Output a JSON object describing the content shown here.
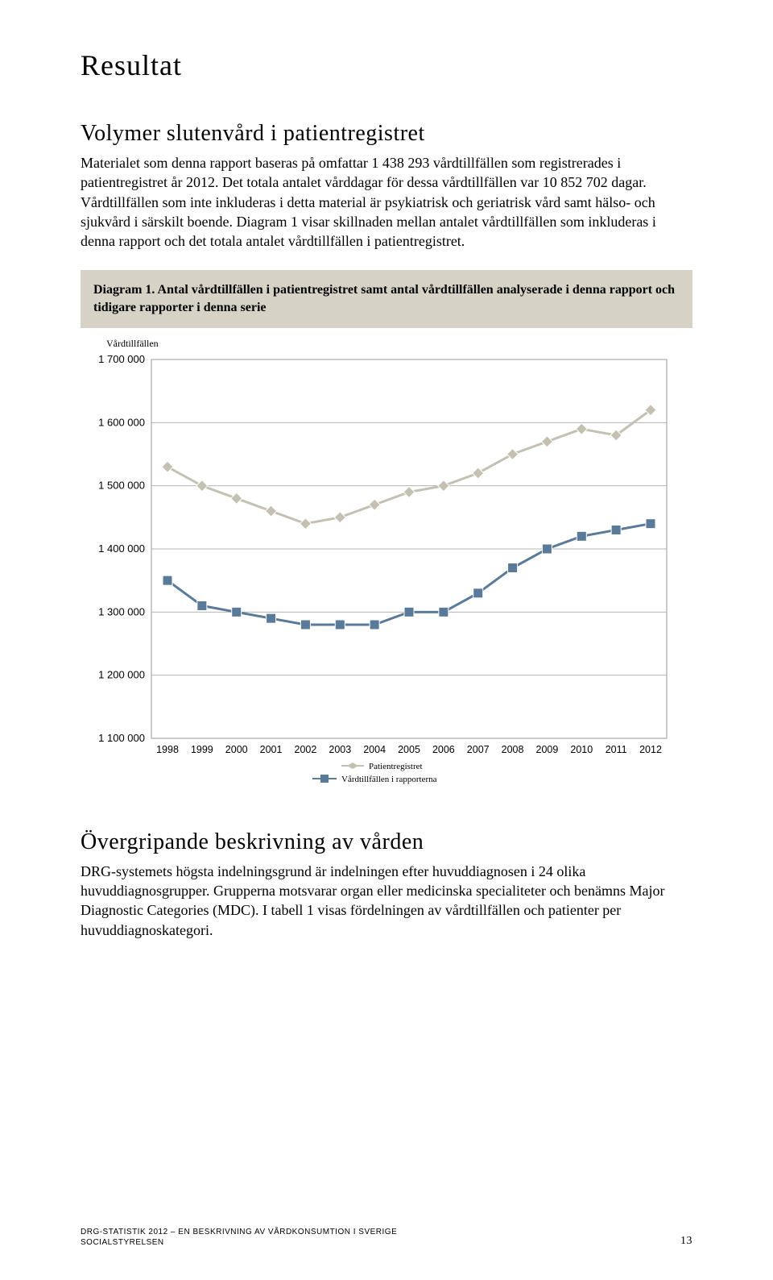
{
  "title": "Resultat",
  "section1": {
    "heading": "Volymer slutenvård i patientregistret",
    "body": "Materialet som denna rapport baseras på omfattar 1 438 293 vårdtillfällen som registrerades i patientregistret år 2012. Det totala antalet vårddagar för dessa vårdtillfällen var 10 852 702 dagar. Vårdtillfällen som inte inkluderas i detta material är psykiatrisk och geriatrisk vård samt hälso- och sjukvård i särskilt boende. Diagram 1 visar skillnaden mellan antalet vårdtillfällen som inkluderas i denna rapport och det totala antalet vårdtillfällen i patientregistret."
  },
  "diagram1": {
    "title_strong": "Diagram 1. ",
    "title_rest": "Antal vårdtillfällen i patientregistret samt antal vårdtillfällen analyserade i denna rapport och tidigare rapporter i denna serie",
    "ylabel": "Vårdtillfällen",
    "background_color": "#d6d3c6",
    "plot_bg": "#ffffff",
    "grid_color": "#b5b5b5",
    "y_ticks": [
      "1 700 000",
      "1 600 000",
      "1 500 000",
      "1 400 000",
      "1 300 000",
      "1 200 000",
      "1 100 000"
    ],
    "y_min": 1100000,
    "y_max": 1700000,
    "x_labels": [
      "1998",
      "1999",
      "2000",
      "2001",
      "2002",
      "2003",
      "2004",
      "2005",
      "2006",
      "2007",
      "2008",
      "2009",
      "2010",
      "2011",
      "2012"
    ],
    "series": [
      {
        "name": "Patientregistret",
        "color": "#c5c1b2",
        "marker": "diamond",
        "values": [
          1530000,
          1500000,
          1480000,
          1460000,
          1440000,
          1450000,
          1470000,
          1490000,
          1500000,
          1520000,
          1550000,
          1570000,
          1590000,
          1580000,
          1620000
        ]
      },
      {
        "name": "Vårdtillfällen i rapporterna",
        "color": "#5a7a9a",
        "marker": "square",
        "values": [
          1350000,
          1310000,
          1300000,
          1290000,
          1280000,
          1280000,
          1280000,
          1300000,
          1300000,
          1330000,
          1370000,
          1400000,
          1420000,
          1430000,
          1440000
        ]
      }
    ],
    "legend": {
      "patientregistret": "Patientregistret",
      "rapporterna": "Vårdtillfällen i rapporterna"
    }
  },
  "section2": {
    "heading": "Övergripande beskrivning av vården",
    "body": "DRG-systemets högsta indelningsgrund är indelningen efter huvuddiagnosen i 24 olika huvuddiagnosgrupper. Grupperna motsvarar organ eller medicinska specialiteter och benämns Major Diagnostic Categories (MDC). I tabell 1 visas fördelningen av vårdtillfällen och patienter per huvuddiagnoskategori."
  },
  "footer": {
    "line1": "DRG-STATISTIK 2012 – EN BESKRIVNING AV VÅRDKONSUMTION I SVERIGE",
    "line2": "SOCIALSTYRELSEN",
    "page": "13"
  }
}
